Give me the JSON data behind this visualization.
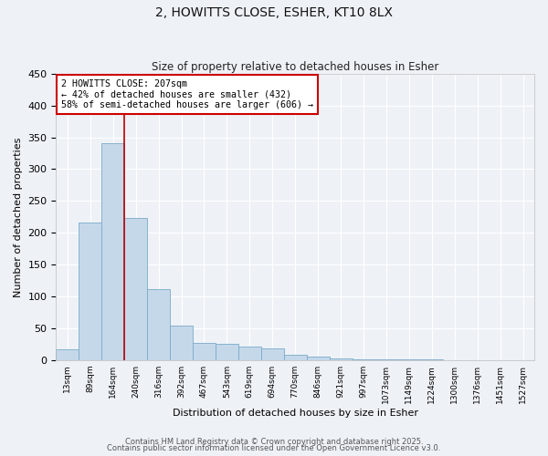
{
  "title": "2, HOWITTS CLOSE, ESHER, KT10 8LX",
  "subtitle": "Size of property relative to detached houses in Esher",
  "xlabel": "Distribution of detached houses by size in Esher",
  "ylabel": "Number of detached properties",
  "bar_color": "#c5d8ea",
  "bar_edge_color": "#7aaac8",
  "background_color": "#eef2f7",
  "grid_color": "#ffffff",
  "categories": [
    "13sqm",
    "89sqm",
    "164sqm",
    "240sqm",
    "316sqm",
    "392sqm",
    "467sqm",
    "543sqm",
    "619sqm",
    "694sqm",
    "770sqm",
    "846sqm",
    "921sqm",
    "997sqm",
    "1073sqm",
    "1149sqm",
    "1224sqm",
    "1300sqm",
    "1376sqm",
    "1451sqm",
    "1527sqm"
  ],
  "values": [
    17,
    216,
    340,
    223,
    112,
    55,
    27,
    26,
    22,
    19,
    8,
    5,
    3,
    2,
    1,
    1,
    1,
    0,
    0,
    0,
    0
  ],
  "ylim": [
    0,
    450
  ],
  "yticks": [
    0,
    50,
    100,
    150,
    200,
    250,
    300,
    350,
    400,
    450
  ],
  "vline_x": 2.5,
  "vline_color": "#bb0000",
  "annotation_text": "2 HOWITTS CLOSE: 207sqm\n← 42% of detached houses are smaller (432)\n58% of semi-detached houses are larger (606) →",
  "annotation_box_color": "#ffffff",
  "annotation_box_edgecolor": "#cc0000",
  "footer1": "Contains HM Land Registry data © Crown copyright and database right 2025.",
  "footer2": "Contains public sector information licensed under the Open Government Licence v3.0.",
  "figsize": [
    6.0,
    5.0
  ],
  "dpi": 100
}
